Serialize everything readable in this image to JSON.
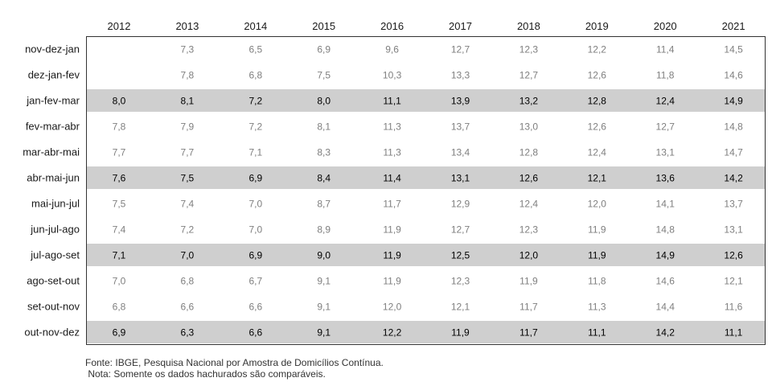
{
  "chart_data": {
    "type": "table",
    "columns": [
      "2012",
      "2013",
      "2014",
      "2015",
      "2016",
      "2017",
      "2018",
      "2019",
      "2020",
      "2021"
    ],
    "rows": [
      {
        "label": "nov-dez-jan",
        "highlight": false,
        "values": [
          "",
          "7,3",
          "6,5",
          "6,9",
          "9,6",
          "12,7",
          "12,3",
          "12,2",
          "11,4",
          "14,5"
        ]
      },
      {
        "label": "dez-jan-fev",
        "highlight": false,
        "values": [
          "",
          "7,8",
          "6,8",
          "7,5",
          "10,3",
          "13,3",
          "12,7",
          "12,6",
          "11,8",
          "14,6"
        ]
      },
      {
        "label": "jan-fev-mar",
        "highlight": true,
        "values": [
          "8,0",
          "8,1",
          "7,2",
          "8,0",
          "11,1",
          "13,9",
          "13,2",
          "12,8",
          "12,4",
          "14,9"
        ]
      },
      {
        "label": "fev-mar-abr",
        "highlight": false,
        "values": [
          "7,8",
          "7,9",
          "7,2",
          "8,1",
          "11,3",
          "13,7",
          "13,0",
          "12,6",
          "12,7",
          "14,8"
        ]
      },
      {
        "label": "mar-abr-mai",
        "highlight": false,
        "values": [
          "7,7",
          "7,7",
          "7,1",
          "8,3",
          "11,3",
          "13,4",
          "12,8",
          "12,4",
          "13,1",
          "14,7"
        ]
      },
      {
        "label": "abr-mai-jun",
        "highlight": true,
        "values": [
          "7,6",
          "7,5",
          "6,9",
          "8,4",
          "11,4",
          "13,1",
          "12,6",
          "12,1",
          "13,6",
          "14,2"
        ]
      },
      {
        "label": "mai-jun-jul",
        "highlight": false,
        "values": [
          "7,5",
          "7,4",
          "7,0",
          "8,7",
          "11,7",
          "12,9",
          "12,4",
          "12,0",
          "14,1",
          "13,7"
        ]
      },
      {
        "label": "jun-jul-ago",
        "highlight": false,
        "values": [
          "7,4",
          "7,2",
          "7,0",
          "8,9",
          "11,9",
          "12,7",
          "12,3",
          "11,9",
          "14,8",
          "13,1"
        ]
      },
      {
        "label": "jul-ago-set",
        "highlight": true,
        "values": [
          "7,1",
          "7,0",
          "6,9",
          "9,0",
          "11,9",
          "12,5",
          "12,0",
          "11,9",
          "14,9",
          "12,6"
        ]
      },
      {
        "label": "ago-set-out",
        "highlight": false,
        "values": [
          "7,0",
          "6,8",
          "6,7",
          "9,1",
          "11,9",
          "12,3",
          "11,9",
          "11,8",
          "14,6",
          "12,1"
        ]
      },
      {
        "label": "set-out-nov",
        "highlight": false,
        "values": [
          "6,8",
          "6,6",
          "6,6",
          "9,1",
          "12,0",
          "12,1",
          "11,7",
          "11,3",
          "14,4",
          "11,6"
        ]
      },
      {
        "label": "out-nov-dez",
        "highlight": true,
        "values": [
          "6,9",
          "6,3",
          "6,6",
          "9,1",
          "12,2",
          "11,9",
          "11,7",
          "11,1",
          "14,2",
          "11,1"
        ]
      }
    ],
    "highlight_color": "#cfcfcf",
    "text_color_highlighted": "#000000",
    "text_color_other": "#7f7f7f"
  },
  "footer": {
    "source": "Fonte: IBGE, Pesquisa Nacional por Amostra de Domicílios Contínua.",
    "note": " Nota: Somente os dados hachurados são comparáveis."
  }
}
